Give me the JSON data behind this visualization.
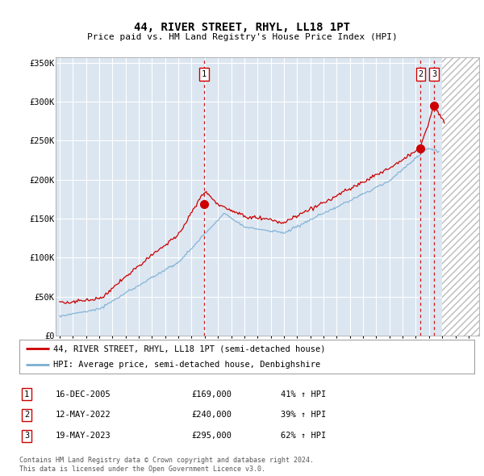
{
  "title": "44, RIVER STREET, RHYL, LL18 1PT",
  "subtitle": "Price paid vs. HM Land Registry's House Price Index (HPI)",
  "y_ticks": [
    0,
    50000,
    100000,
    150000,
    200000,
    250000,
    300000,
    350000
  ],
  "y_tick_labels": [
    "£0",
    "£50K",
    "£100K",
    "£150K",
    "£200K",
    "£250K",
    "£300K",
    "£350K"
  ],
  "sale_color": "#cc0000",
  "hpi_color": "#7bafd4",
  "background_color": "#dce6f1",
  "grid_color": "#ffffff",
  "sale_dates": [
    2005.96,
    2022.36,
    2023.38
  ],
  "sale_prices": [
    169000,
    240000,
    295000
  ],
  "sale_labels": [
    "1",
    "2",
    "3"
  ],
  "vline_color": "#cc0000",
  "legend_line1": "44, RIVER STREET, RHYL, LL18 1PT (semi-detached house)",
  "legend_line2": "HPI: Average price, semi-detached house, Denbighshire",
  "table_rows": [
    [
      "1",
      "16-DEC-2005",
      "£169,000",
      "41% ↑ HPI"
    ],
    [
      "2",
      "12-MAY-2022",
      "£240,000",
      "39% ↑ HPI"
    ],
    [
      "3",
      "19-MAY-2023",
      "£295,000",
      "62% ↑ HPI"
    ]
  ],
  "footer_line1": "Contains HM Land Registry data © Crown copyright and database right 2024.",
  "footer_line2": "This data is licensed under the Open Government Licence v3.0."
}
